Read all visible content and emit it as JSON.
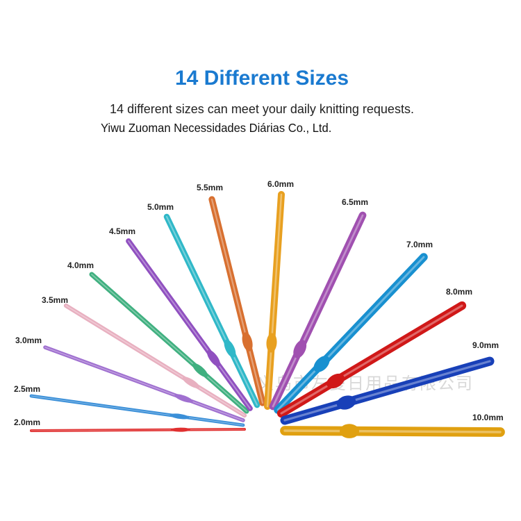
{
  "header": {
    "title": "14 Different Sizes",
    "subtitle": "14 different sizes can meet your daily knitting requests."
  },
  "watermarks": [
    "Yiwu Zuoman Necessidades Diárias Co., Ltd.",
    "义乌市左曼日用品有限公司"
  ],
  "hooks": [
    "2.0mm",
    "2.5mm",
    "3.0mm",
    "3.5mm",
    "4.0mm",
    "4.5mm",
    "5.0mm",
    "5.5mm",
    "6.0mm",
    "6.5mm",
    "7.0mm",
    "8.0mm",
    "9.0mm",
    "10.0mm"
  ]
}
